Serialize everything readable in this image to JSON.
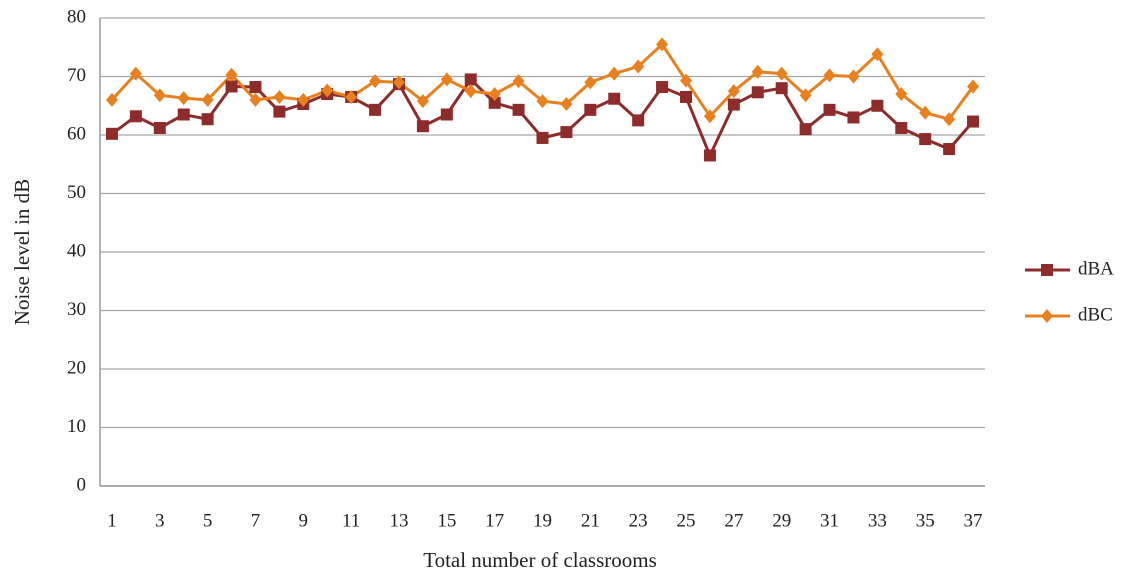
{
  "chart_data": {
    "type": "line",
    "y_label": "Noise  level  in dB",
    "x_label": "Total number of classrooms",
    "categories": [
      "1",
      null,
      "3",
      null,
      "5",
      null,
      "7",
      null,
      "9",
      null,
      "11",
      null,
      "13",
      null,
      "15",
      null,
      "17",
      null,
      "19",
      null,
      "21",
      null,
      "23",
      null,
      "25",
      null,
      "27",
      null,
      "29",
      null,
      "31",
      null,
      "33",
      null,
      "35",
      null,
      "37"
    ],
    "series": [
      {
        "name": "dBA",
        "color": "#8e2b2b",
        "marker": "square",
        "values": [
          60.2,
          63.2,
          61.2,
          63.5,
          62.7,
          68.3,
          68.2,
          64,
          65.3,
          67,
          66.5,
          64.3,
          68.7,
          61.5,
          63.5,
          69.5,
          65.5,
          64.3,
          59.5,
          60.5,
          64.3,
          66.2,
          62.5,
          68.2,
          66.5,
          56.5,
          65.2,
          67.3,
          68,
          61,
          64.3,
          63,
          65,
          61.2,
          59.3,
          57.6,
          62.3
        ]
      },
      {
        "name": "dBC",
        "color": "#e8801f",
        "marker": "diamond",
        "values": [
          66,
          70.5,
          66.8,
          66.3,
          66,
          70.3,
          66,
          66.5,
          66,
          67.6,
          66.5,
          69.2,
          69,
          65.8,
          69.5,
          67.5,
          67,
          69.2,
          65.8,
          65.3,
          69,
          70.5,
          71.7,
          75.5,
          69.3,
          63.2,
          67.5,
          70.8,
          70.5,
          66.8,
          70.2,
          70,
          73.8,
          67,
          63.8,
          62.7,
          68.3
        ]
      }
    ],
    "ylim": [
      0,
      80
    ],
    "yticks": [
      0,
      10,
      20,
      30,
      40,
      50,
      60,
      70,
      80
    ],
    "grid": true,
    "legend": "right"
  }
}
